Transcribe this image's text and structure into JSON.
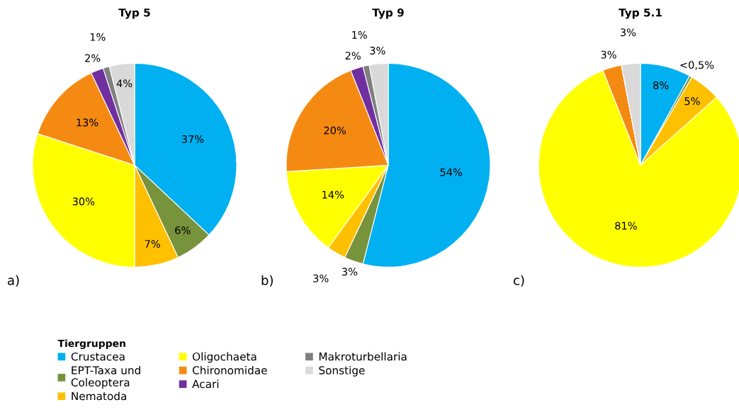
{
  "chart_data": [
    {
      "type": "pie",
      "title": "Typ 5",
      "annotations": [
        "a)"
      ],
      "legend": "bottom",
      "legend_title": "Tiergruppen",
      "categories": [
        "Crustacea",
        "EPT-Taxa und\nColeoptera",
        "Nematoda",
        "Oligochaeta",
        "Chironomidae",
        "Acari",
        "Makroturbellaria",
        "Sonstige"
      ],
      "values": [
        37,
        6,
        7,
        30,
        13,
        2,
        1,
        4
      ],
      "value_labels": [
        "37%",
        "6%",
        "7%",
        "30%",
        "13%",
        "2%",
        "1%",
        "4%"
      ],
      "colors": [
        "#00b0f0",
        "#77933c",
        "#ffc000",
        "#ffff00",
        "#f58a12",
        "#7030a0",
        "#808080",
        "#d9d9d9"
      ]
    },
    {
      "type": "pie",
      "title": "Typ 9",
      "annotations": [
        "b)"
      ],
      "values": [
        54,
        3,
        3,
        14,
        20,
        2,
        1,
        3
      ],
      "value_labels": [
        "54%",
        "3%",
        "3%",
        "14%",
        "20%",
        "2%",
        "1%",
        "3%"
      ],
      "colors": [
        "#00b0f0",
        "#77933c",
        "#ffc000",
        "#ffff00",
        "#f58a12",
        "#7030a0",
        "#808080",
        "#d9d9d9"
      ]
    },
    {
      "type": "pie",
      "title": "Typ 5.1",
      "annotations": [
        "c)"
      ],
      "values": [
        8,
        0.4,
        5,
        80.6,
        3,
        0,
        0,
        3
      ],
      "value_labels": [
        "8%",
        "<0,5%",
        "5%",
        "81%",
        "3%",
        null,
        null,
        "3%"
      ],
      "colors": [
        "#00b0f0",
        "#77933c",
        "#ffc000",
        "#ffff00",
        "#f58a12",
        "#7030a0",
        "#808080",
        "#d9d9d9"
      ]
    }
  ]
}
